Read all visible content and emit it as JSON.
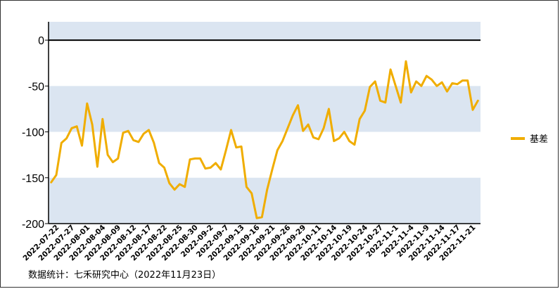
{
  "chart_data": {
    "type": "line",
    "title": "",
    "xlabel": "",
    "ylabel": "",
    "ylim": [
      -200,
      20
    ],
    "yticks": [
      0,
      -50,
      -100,
      -150,
      -200
    ],
    "band_color": "#dbe5f1",
    "line_color": "#f0ad00",
    "zero_line_color": "#000000",
    "x_tick_labels": [
      "2022-07-22",
      "2022-07-27",
      "2022-08-01",
      "2022-08-04",
      "2022-08-09",
      "2022-08-12",
      "2022-08-17",
      "2022-08-22",
      "2022-08-25",
      "2022-08-30",
      "2022-09-2",
      "2022-09-7",
      "2022-09-13",
      "2022-09-16",
      "2022-09-21",
      "2022-09-26",
      "2022-09-29",
      "2022-10-11",
      "2022-10-14",
      "2022-10-19",
      "2022-10-24",
      "2022-10-27",
      "2022-11-1",
      "2022-11-4",
      "2022-11-9",
      "2022-11-14",
      "2022-11-17",
      "2022-11-21"
    ],
    "series": [
      {
        "name": "基差",
        "values": [
          -155,
          -147,
          -112,
          -107,
          -96,
          -94,
          -115,
          -69,
          -92,
          -138,
          -86,
          -125,
          -133,
          -129,
          -101,
          -99,
          -109,
          -111,
          -102,
          -98,
          -112,
          -134,
          -139,
          -156,
          -163,
          -157,
          -160,
          -130,
          -129,
          -129,
          -140,
          -139,
          -134,
          -141,
          -120,
          -98,
          -117,
          -116,
          -160,
          -167,
          -194,
          -193,
          -163,
          -141,
          -120,
          -110,
          -96,
          -82,
          -71,
          -99,
          -92,
          -106,
          -108,
          -96,
          -75,
          -110,
          -107,
          -100,
          -110,
          -114,
          -86,
          -77,
          -51,
          -45,
          -66,
          -68,
          -32,
          -50,
          -68,
          -23,
          -57,
          -45,
          -50,
          -39,
          -43,
          -50,
          -46,
          -56,
          -47,
          -48,
          -44,
          -44,
          -76,
          -66
        ]
      }
    ],
    "legend_position": "right"
  },
  "source_text": "数据统计：七禾研究中心（2022年11月23日）"
}
